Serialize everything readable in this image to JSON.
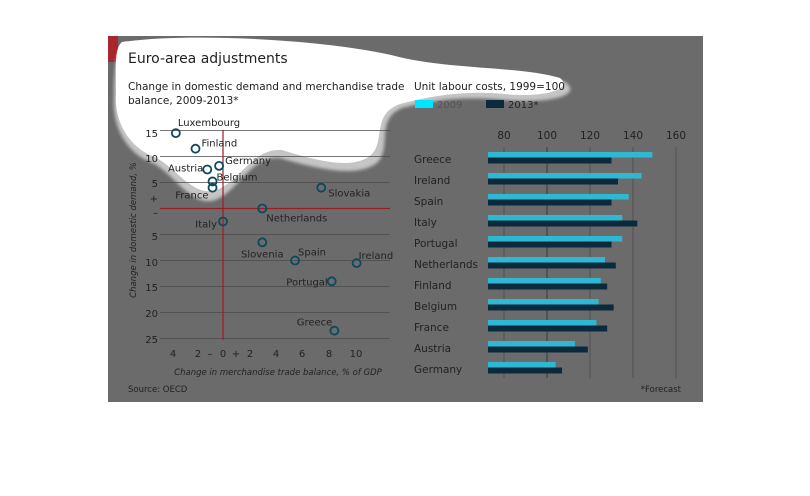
{
  "title": "Euro-area adjustments",
  "source": "Source: OECD",
  "forecast_note": "*Forecast",
  "chart_data": [
    {
      "type": "scatter",
      "subtitle": "Change in domestic demand and merchandise trade balance, 2009-2013*",
      "xlabel": "Change in merchandise trade balance, % of GDP",
      "ylabel": "Change in domestic demand, %",
      "xlim": [
        -4,
        11
      ],
      "ylim": [
        -25,
        17
      ],
      "x_ticks": [
        "4",
        "2",
        "–",
        "0",
        "+",
        "2",
        "4",
        "6",
        "8",
        "10"
      ],
      "y_ticks": [
        "15",
        "10",
        "5",
        "+",
        "–",
        "5",
        "10",
        "15",
        "20",
        "25"
      ],
      "points": [
        {
          "label": "Luxembourg",
          "x": -3.6,
          "y": 14.5
        },
        {
          "label": "Finland",
          "x": -2.1,
          "y": 11.5
        },
        {
          "label": "Austria",
          "x": -1.2,
          "y": 7.5
        },
        {
          "label": "Germany",
          "x": -0.3,
          "y": 8.2
        },
        {
          "label": "Belgium",
          "x": -0.8,
          "y": 5.2
        },
        {
          "label": "France",
          "x": -0.8,
          "y": 4.0
        },
        {
          "label": "Slovakia",
          "x": 7.5,
          "y": 4.0
        },
        {
          "label": "Netherlands",
          "x": 3.0,
          "y": 0.0
        },
        {
          "label": "Italy",
          "x": 0.0,
          "y": -2.5
        },
        {
          "label": "Slovenia",
          "x": 3.0,
          "y": -6.5
        },
        {
          "label": "Spain",
          "x": 5.5,
          "y": -10.0
        },
        {
          "label": "Ireland",
          "x": 10.2,
          "y": -10.5
        },
        {
          "label": "Portugal",
          "x": 8.3,
          "y": -14.0
        },
        {
          "label": "Greece",
          "x": 8.5,
          "y": -23.5
        }
      ]
    },
    {
      "type": "bar",
      "orientation": "horizontal",
      "title": "Unit labour costs, 1999=100",
      "xlim": [
        70,
        165
      ],
      "x_ticks": [
        80,
        100,
        120,
        140,
        160
      ],
      "legend_position": "top",
      "categories": [
        "Greece",
        "Ireland",
        "Spain",
        "Italy",
        "Portugal",
        "Netherlands",
        "Finland",
        "Belgium",
        "France",
        "Austria",
        "Germany"
      ],
      "series": [
        {
          "name": "2009",
          "color": "#2eb8d4",
          "values": [
            149,
            144,
            138,
            135,
            135,
            127,
            125,
            124,
            123,
            113,
            104
          ]
        },
        {
          "name": "2013*",
          "color": "#0b2a3c",
          "values": [
            130,
            133,
            130,
            142,
            130,
            132,
            128,
            131,
            128,
            119,
            107
          ]
        }
      ]
    }
  ]
}
